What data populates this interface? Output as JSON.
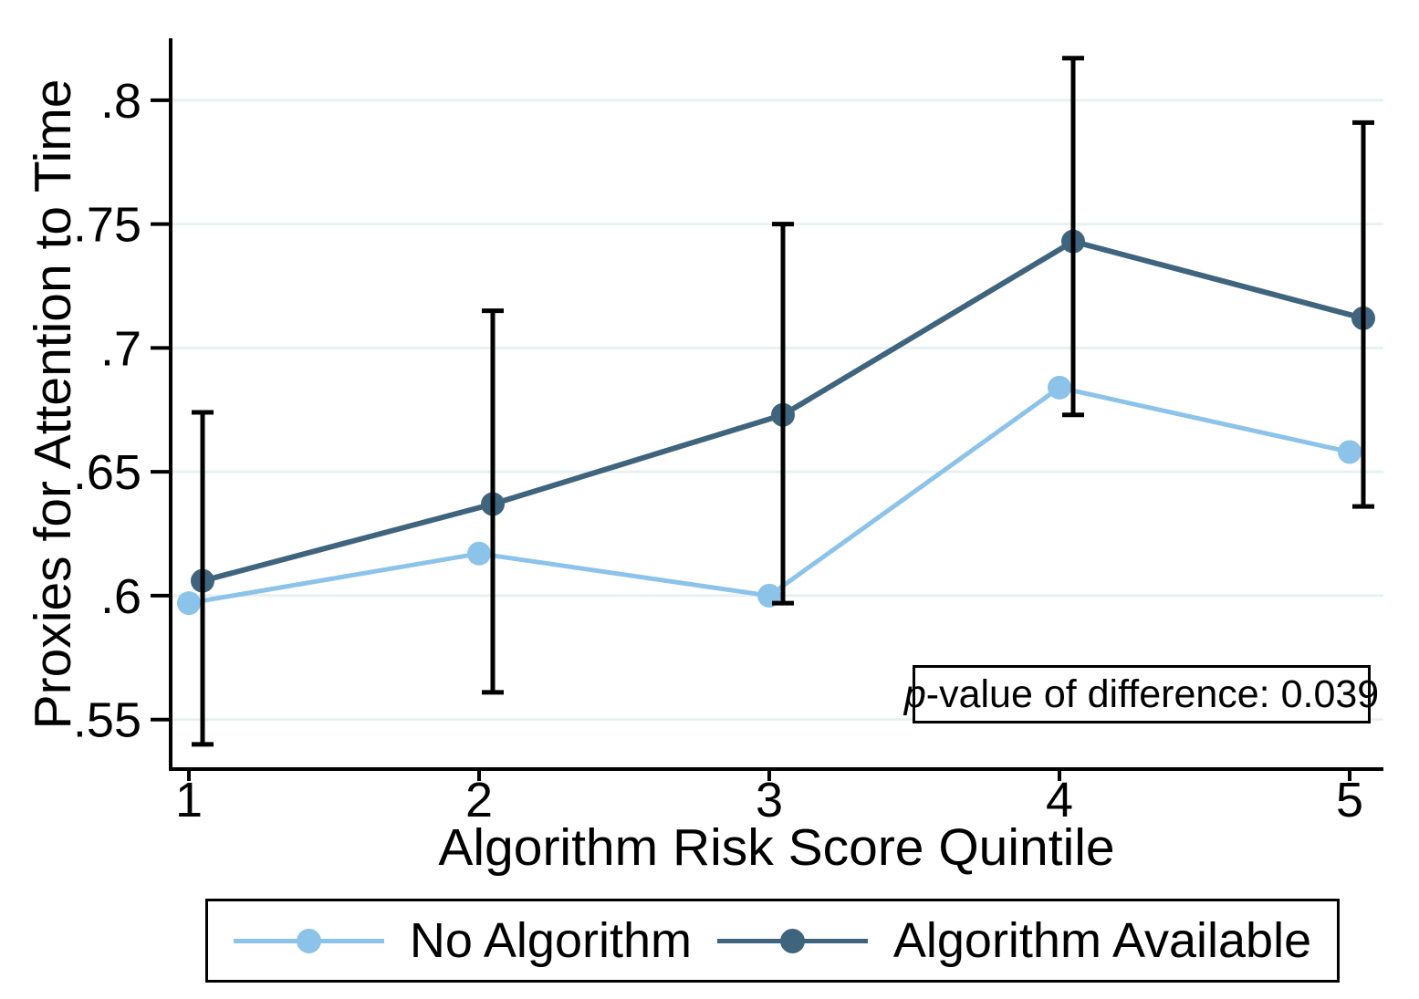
{
  "figure": {
    "y_axis": {
      "title": "Proxies for Attention to Time",
      "tick_labels": [
        ".55",
        ".6",
        ".65",
        ".7",
        ".75",
        ".8"
      ],
      "tick_values": [
        0.55,
        0.6,
        0.65,
        0.7,
        0.75,
        0.8
      ]
    },
    "x_axis": {
      "title": "Algorithm Risk Score Quintile",
      "tick_labels": [
        "1",
        "2",
        "3",
        "4",
        "5"
      ],
      "tick_values": [
        1,
        2,
        3,
        4,
        5
      ]
    },
    "annotation": {
      "p_italic": "p",
      "rest": "-value of difference: 0.039"
    },
    "legend": [
      {
        "label": "No Algorithm",
        "color": "#8cc3e9"
      },
      {
        "label": "Algorithm Available",
        "color": "#3f647e"
      }
    ]
  },
  "chart_data": {
    "type": "line",
    "x": [
      1,
      2,
      3,
      4,
      5
    ],
    "categories": [
      "1",
      "2",
      "3",
      "4",
      "5"
    ],
    "series": [
      {
        "name": "No Algorithm",
        "color": "#8cc3e9",
        "values": [
          0.597,
          0.617,
          0.6,
          0.684,
          0.658
        ]
      },
      {
        "name": "Algorithm Available",
        "color": "#3f647e",
        "values": [
          0.606,
          0.637,
          0.673,
          0.743,
          0.712
        ],
        "ci_low": [
          0.54,
          0.561,
          0.597,
          0.673,
          0.636
        ],
        "ci_high": [
          0.674,
          0.715,
          0.75,
          0.817,
          0.791
        ]
      }
    ],
    "title": "",
    "xlabel": "Algorithm Risk Score Quintile",
    "ylabel": "Proxies for Attention to Time",
    "ylim": [
      0.53,
      0.825
    ],
    "y_ticks": [
      0.55,
      0.6,
      0.65,
      0.7,
      0.75,
      0.8
    ],
    "y_tick_labels": [
      ".55",
      ".6",
      ".65",
      ".7",
      ".75",
      ".8"
    ],
    "grid": true,
    "gridline_color": "#e8f1f2",
    "error_bar_color": "#000000",
    "axis_color": "#000000",
    "annotation": "p-value of difference: 0.039",
    "legend_position": "bottom"
  }
}
